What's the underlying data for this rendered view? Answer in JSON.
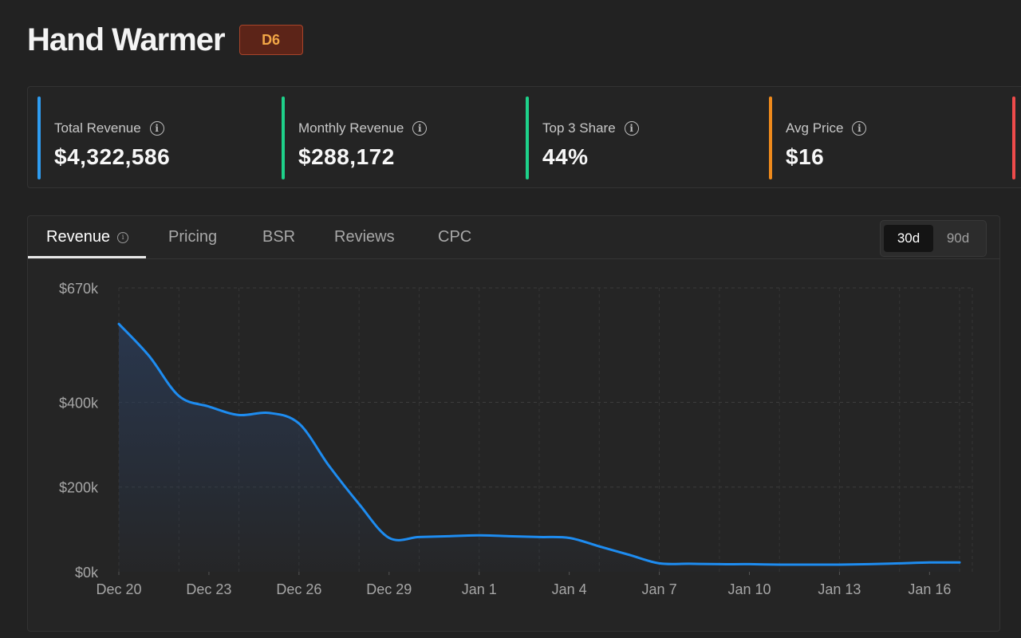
{
  "header": {
    "title": "Hand Warmer",
    "badge": "D6"
  },
  "stats": [
    {
      "label": "Total Revenue",
      "value": "$4,322,586",
      "color": "#2e9cf0"
    },
    {
      "label": "Monthly Revenue",
      "value": "$288,172",
      "color": "#1ed18a"
    },
    {
      "label": "Top 3 Share",
      "value": "44%",
      "color": "#1ed18a"
    },
    {
      "label": "Avg Price",
      "value": "$16",
      "color": "#ef8a1c"
    },
    {
      "label": "",
      "value": "",
      "color": "#ef4b4b"
    }
  ],
  "tabs": [
    {
      "label": "Revenue",
      "active": true
    },
    {
      "label": "Pricing"
    },
    {
      "label": "BSR"
    },
    {
      "label": "Reviews"
    },
    {
      "label": "CPC"
    }
  ],
  "range": {
    "options": [
      "30d",
      "90d"
    ],
    "selected": "30d"
  },
  "chart_data": {
    "type": "area",
    "x": [
      "Dec 20",
      "Dec 21",
      "Dec 22",
      "Dec 23",
      "Dec 24",
      "Dec 25",
      "Dec 26",
      "Dec 27",
      "Dec 28",
      "Dec 29",
      "Dec 30",
      "Dec 31",
      "Jan 1",
      "Jan 2",
      "Jan 3",
      "Jan 4",
      "Jan 5",
      "Jan 6",
      "Jan 7",
      "Jan 8",
      "Jan 9",
      "Jan 10",
      "Jan 11",
      "Jan 12",
      "Jan 13",
      "Jan 14",
      "Jan 15",
      "Jan 16",
      "Jan 17"
    ],
    "x_ticks": [
      "Dec 20",
      "Dec 23",
      "Dec 26",
      "Dec 29",
      "Jan 1",
      "Jan 4",
      "Jan 7",
      "Jan 10",
      "Jan 13",
      "Jan 16"
    ],
    "y_ticks": [
      "$0k",
      "$200k",
      "$400k",
      "$670k"
    ],
    "y_tick_values": [
      0,
      200000,
      400000,
      670000
    ],
    "ylim": [
      0,
      670000
    ],
    "color": "#1e8cf0",
    "series": [
      {
        "values": [
          585000,
          510000,
          415000,
          390000,
          370000,
          375000,
          350000,
          250000,
          160000,
          80000,
          82000,
          84000,
          86000,
          84000,
          82000,
          80000,
          60000,
          40000,
          20000,
          19000,
          18000,
          18000,
          17000,
          17000,
          17000,
          18000,
          20000,
          22000,
          22000
        ]
      }
    ]
  }
}
